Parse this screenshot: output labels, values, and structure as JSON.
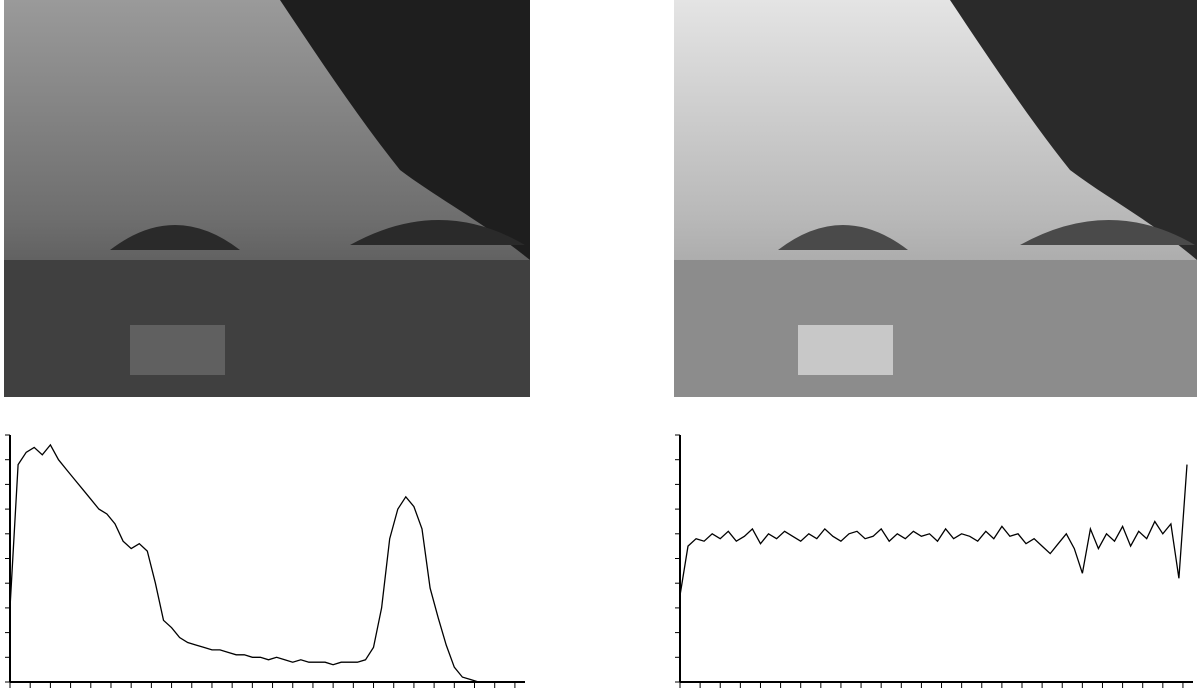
{
  "chart_data": [
    {
      "type": "line",
      "color": "#000000",
      "x": [
        0,
        4,
        8,
        12,
        16,
        20,
        24,
        28,
        32,
        36,
        40,
        44,
        48,
        52,
        56,
        60,
        64,
        68,
        72,
        76,
        80,
        84,
        88,
        92,
        96,
        100,
        104,
        108,
        112,
        116,
        120,
        124,
        128,
        132,
        136,
        140,
        144,
        148,
        152,
        156,
        160,
        164,
        168,
        172,
        176,
        180,
        184,
        188,
        192,
        196,
        200,
        204,
        208,
        212,
        216,
        220,
        224,
        228,
        232,
        236,
        240,
        244,
        248,
        252
      ],
      "values": [
        30,
        88,
        93,
        95,
        92,
        96,
        90,
        86,
        82,
        78,
        74,
        70,
        68,
        64,
        57,
        54,
        56,
        53,
        40,
        25,
        22,
        18,
        16,
        15,
        14,
        13,
        13,
        12,
        11,
        11,
        10,
        10,
        9,
        10,
        9,
        8,
        9,
        8,
        8,
        8,
        7,
        8,
        8,
        8,
        9,
        14,
        30,
        58,
        70,
        75,
        71,
        62,
        38,
        26,
        15,
        6,
        2,
        1,
        0,
        0,
        0,
        0,
        0,
        0
      ],
      "xlim": [
        0,
        255
      ],
      "ylim": [
        0,
        100
      ],
      "xticks": [
        0,
        10,
        20,
        30,
        40,
        50,
        60,
        70,
        80,
        90,
        100,
        110,
        120,
        130,
        140,
        150,
        160,
        170,
        180,
        190,
        200,
        210,
        220,
        230,
        240,
        250
      ],
      "yticks": [
        0,
        10,
        20,
        30,
        40,
        50,
        60,
        70,
        80,
        90,
        100
      ]
    },
    {
      "type": "line",
      "color": "#000000",
      "x": [
        0,
        4,
        8,
        12,
        16,
        20,
        24,
        28,
        32,
        36,
        40,
        44,
        48,
        52,
        56,
        60,
        64,
        68,
        72,
        76,
        80,
        84,
        88,
        92,
        96,
        100,
        104,
        108,
        112,
        116,
        120,
        124,
        128,
        132,
        136,
        140,
        144,
        148,
        152,
        156,
        160,
        164,
        168,
        172,
        176,
        180,
        184,
        188,
        192,
        196,
        200,
        204,
        208,
        212,
        216,
        220,
        224,
        228,
        232,
        236,
        240,
        244,
        248,
        252
      ],
      "values": [
        35,
        55,
        58,
        57,
        60,
        58,
        61,
        57,
        59,
        62,
        56,
        60,
        58,
        61,
        59,
        57,
        60,
        58,
        62,
        59,
        57,
        60,
        61,
        58,
        59,
        62,
        57,
        60,
        58,
        61,
        59,
        60,
        57,
        62,
        58,
        60,
        59,
        57,
        61,
        58,
        63,
        59,
        60,
        56,
        58,
        55,
        52,
        56,
        60,
        54,
        44,
        62,
        54,
        60,
        57,
        63,
        55,
        61,
        58,
        65,
        60,
        64,
        42,
        88
      ],
      "xlim": [
        0,
        255
      ],
      "ylim": [
        0,
        100
      ],
      "xticks": [
        0,
        10,
        20,
        30,
        40,
        50,
        60,
        70,
        80,
        90,
        100,
        110,
        120,
        130,
        140,
        150,
        160,
        170,
        180,
        190,
        200,
        210,
        220,
        230,
        240,
        250
      ],
      "yticks": [
        0,
        10,
        20,
        30,
        40,
        50,
        60,
        70,
        80,
        90,
        100
      ]
    }
  ]
}
